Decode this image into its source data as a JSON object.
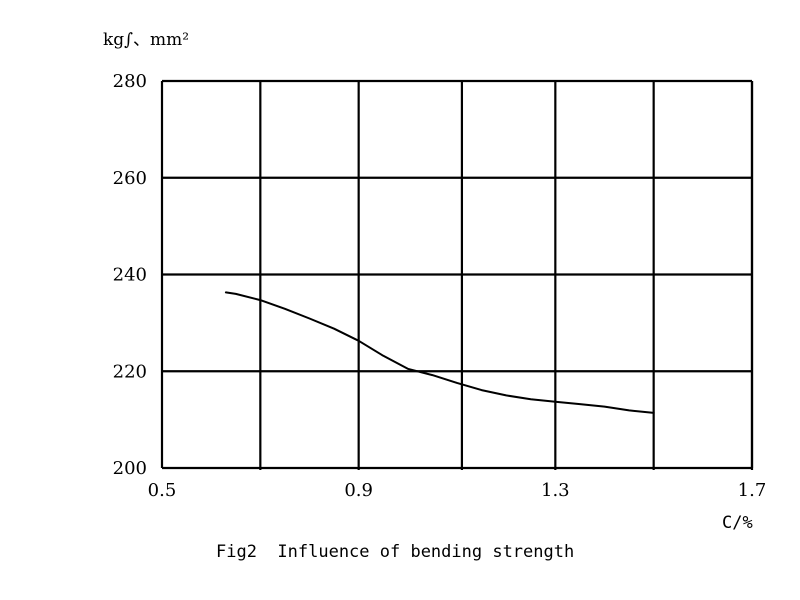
{
  "chart_data": {
    "type": "line",
    "ylabel": "kg∫、mm²",
    "xlabel": "C/%",
    "caption": "Fig2  Influence of bending strength",
    "xlim": [
      0.5,
      1.7
    ],
    "ylim": [
      200,
      280
    ],
    "x_ticks": [
      0.5,
      0.9,
      1.3,
      1.7
    ],
    "x_tick_labels": [
      "0.5",
      "0.9",
      "1.3",
      "1.7"
    ],
    "y_ticks": [
      200,
      220,
      240,
      260,
      280
    ],
    "y_tick_labels": [
      "200",
      "220",
      "240",
      "260",
      "280"
    ],
    "x_gridlines": [
      0.7,
      0.9,
      1.11,
      1.3,
      1.5,
      1.7
    ],
    "y_gridlines": [
      220,
      240,
      260,
      280
    ],
    "grid": true,
    "series": [
      {
        "x": [
          0.63,
          0.65,
          0.7,
          0.75,
          0.8,
          0.85,
          0.9,
          0.95,
          1.0,
          1.05,
          1.1,
          1.15,
          1.2,
          1.25,
          1.3,
          1.35,
          1.4,
          1.45,
          1.5
        ],
        "values": [
          236.3,
          236.0,
          234.7,
          232.9,
          230.9,
          228.8,
          226.3,
          223.2,
          220.5,
          219.2,
          217.6,
          216.1,
          215.0,
          214.2,
          213.7,
          213.2,
          212.7,
          211.9,
          211.4
        ]
      }
    ]
  },
  "colors": {
    "line": "#000000",
    "background": "#ffffff"
  }
}
